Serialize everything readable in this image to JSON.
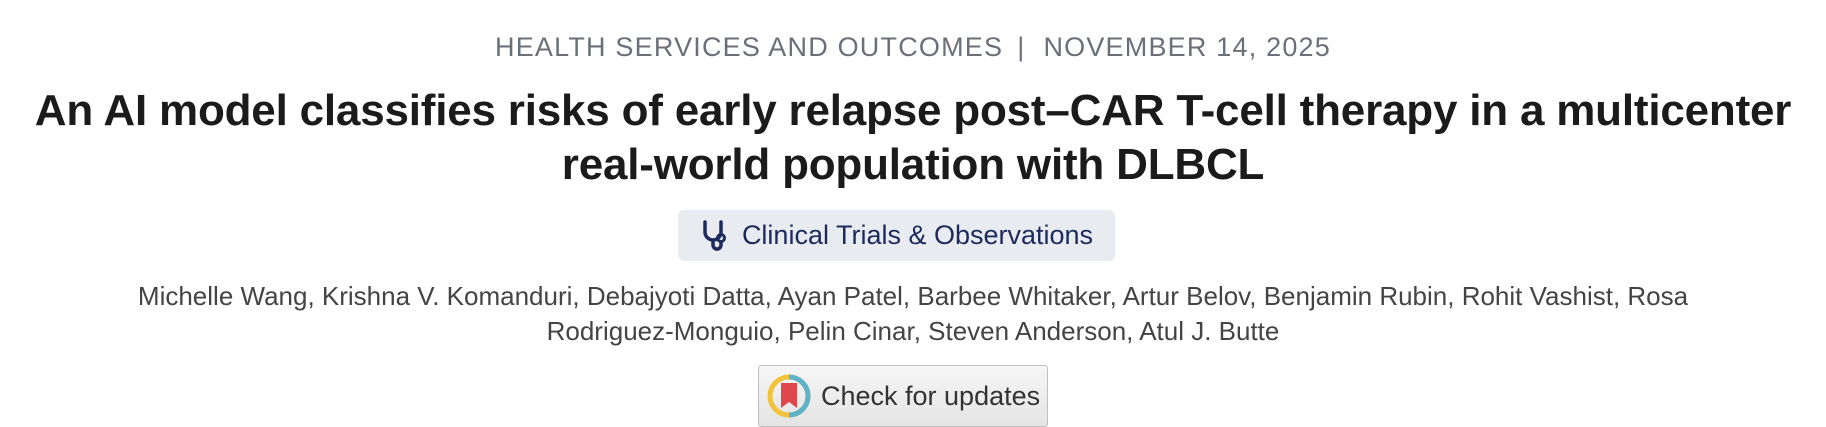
{
  "header": {
    "section": "HEALTH SERVICES AND OUTCOMES",
    "separator": "|",
    "date": "NOVEMBER 14, 2025"
  },
  "title": "An AI model classifies risks of early relapse post–CAR T-cell therapy in a multicenter real-world population with DLBCL",
  "category": "Clinical Trials & Observations",
  "authors": "Michelle Wang, Krishna V. Komanduri, Debajyoti Datta, Ayan Patel, Barbee Whitaker, Artur Belov, Benjamin Rubin, Rohit Vashist, Rosa Rodriguez-Monguio, Pelin Cinar, Steven Anderson, Atul J. Butte",
  "update_button": "Check for updates"
}
